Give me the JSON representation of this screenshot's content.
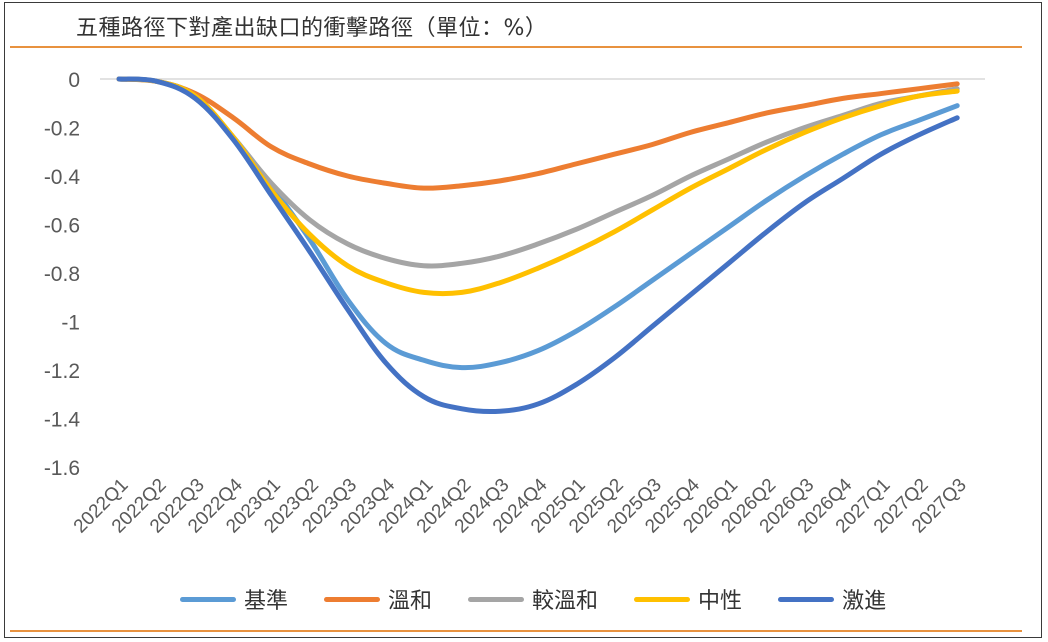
{
  "chart_data": {
    "type": "line",
    "title": "五種路徑下對產出缺口的衝擊路徑（單位：%）",
    "xlabel": "",
    "ylabel": "",
    "ylim": [
      -1.6,
      0
    ],
    "yticks": [
      "0",
      "-0.2",
      "-0.4",
      "-0.6",
      "-0.8",
      "-1",
      "-1.2",
      "-1.4",
      "-1.6"
    ],
    "categories": [
      "2022Q1",
      "2022Q2",
      "2022Q3",
      "2022Q4",
      "2023Q1",
      "2023Q2",
      "2023Q3",
      "2023Q4",
      "2024Q1",
      "2024Q2",
      "2024Q3",
      "2024Q4",
      "2025Q1",
      "2025Q2",
      "2025Q3",
      "2025Q4",
      "2026Q1",
      "2026Q2",
      "2026Q3",
      "2026Q4",
      "2027Q1",
      "2027Q2",
      "2027Q3"
    ],
    "legend_position": "bottom",
    "series": [
      {
        "name": "基準",
        "color": "#5b9bd5",
        "values": [
          0,
          -0.01,
          -0.07,
          -0.24,
          -0.44,
          -0.66,
          -0.91,
          -1.09,
          -1.16,
          -1.19,
          -1.17,
          -1.12,
          -1.04,
          -0.94,
          -0.83,
          -0.72,
          -0.61,
          -0.5,
          -0.4,
          -0.31,
          -0.23,
          -0.17,
          -0.11
        ]
      },
      {
        "name": "溫和",
        "color": "#ed7d31",
        "values": [
          0,
          -0.01,
          -0.06,
          -0.16,
          -0.28,
          -0.35,
          -0.4,
          -0.43,
          -0.45,
          -0.44,
          -0.42,
          -0.39,
          -0.35,
          -0.31,
          -0.27,
          -0.22,
          -0.18,
          -0.14,
          -0.11,
          -0.08,
          -0.06,
          -0.04,
          -0.02
        ]
      },
      {
        "name": "較溫和",
        "color": "#a5a5a5",
        "values": [
          0,
          -0.01,
          -0.07,
          -0.24,
          -0.43,
          -0.58,
          -0.68,
          -0.74,
          -0.77,
          -0.76,
          -0.73,
          -0.68,
          -0.62,
          -0.55,
          -0.48,
          -0.4,
          -0.33,
          -0.26,
          -0.2,
          -0.15,
          -0.1,
          -0.07,
          -0.04
        ]
      },
      {
        "name": "中性",
        "color": "#ffc000",
        "values": [
          0,
          -0.01,
          -0.07,
          -0.24,
          -0.46,
          -0.64,
          -0.77,
          -0.84,
          -0.88,
          -0.88,
          -0.84,
          -0.78,
          -0.71,
          -0.63,
          -0.54,
          -0.45,
          -0.37,
          -0.29,
          -0.22,
          -0.16,
          -0.11,
          -0.07,
          -0.05
        ]
      },
      {
        "name": "激進",
        "color": "#4472c4",
        "values": [
          0,
          -0.01,
          -0.08,
          -0.25,
          -0.48,
          -0.71,
          -0.95,
          -1.17,
          -1.31,
          -1.36,
          -1.37,
          -1.34,
          -1.26,
          -1.15,
          -1.02,
          -0.89,
          -0.76,
          -0.63,
          -0.51,
          -0.41,
          -0.31,
          -0.23,
          -0.16
        ]
      }
    ]
  }
}
